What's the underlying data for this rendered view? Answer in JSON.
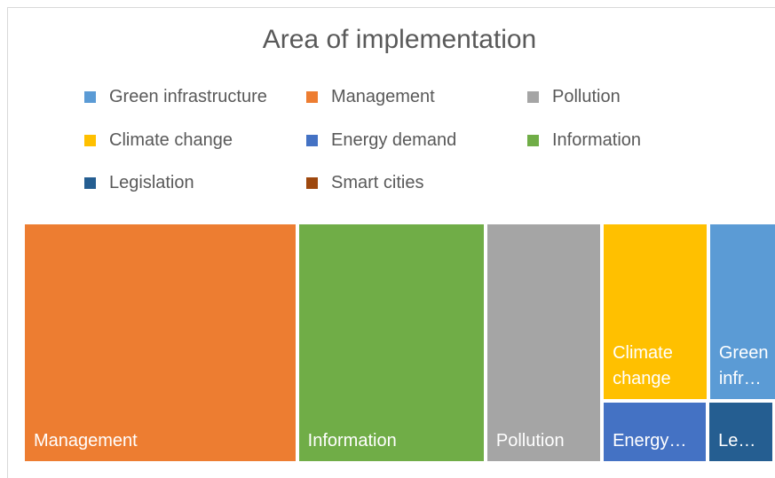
{
  "chart_data": {
    "type": "treemap",
    "title": "Area of implementation",
    "series": [
      {
        "name": "Green infrastructure",
        "color": "#5b9bd5",
        "values": [
          15
        ]
      },
      {
        "name": "Management",
        "color": "#ed7d31",
        "values": [
          80
        ]
      },
      {
        "name": "Pollution",
        "color": "#a5a5a5",
        "values": [
          34
        ]
      },
      {
        "name": "Climate change",
        "color": "#ffc000",
        "values": [
          23
        ]
      },
      {
        "name": "Energy demand",
        "color": "#4472c4",
        "values": [
          8
        ]
      },
      {
        "name": "Information",
        "color": "#70ad47",
        "values": [
          55
        ]
      },
      {
        "name": "Legislation",
        "color": "#255e91",
        "values": [
          5
        ]
      },
      {
        "name": "Smart cities",
        "color": "#9e480e",
        "values": [
          0.3
        ]
      }
    ]
  }
}
